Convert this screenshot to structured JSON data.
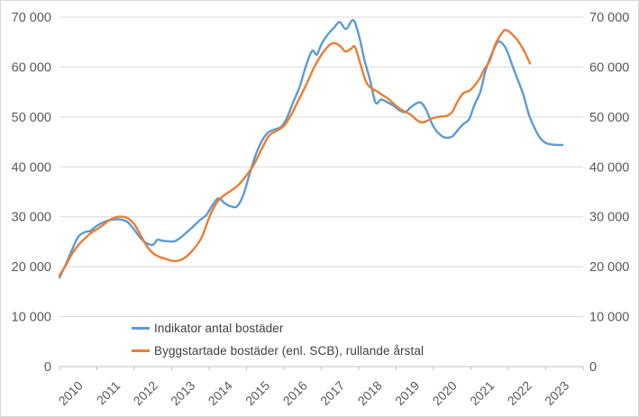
{
  "chart": {
    "legend": [
      {
        "label": "Indikator antal bostäder",
        "color": "#5B9BD5"
      },
      {
        "label": "Byggstartade bostäder (enl. SCB), rullande årstal",
        "color": "#ED7D31"
      }
    ],
    "y_axis": {
      "tick_labels": [
        "0",
        "10 000",
        "20 000",
        "30 000",
        "40 000",
        "50 000",
        "60 000",
        "70 000"
      ],
      "min": 0,
      "max": 70000,
      "step": 10000
    },
    "x_axis": {
      "year_labels": [
        "2010",
        "2011",
        "2012",
        "2013",
        "2014",
        "2015",
        "2016",
        "2017",
        "2018",
        "2019",
        "2020",
        "2021",
        "2022",
        "2023"
      ]
    },
    "colors": {
      "gridline": "#D9D9D9",
      "axis_line": "#BFBFBF",
      "tick_text": "#595959",
      "legend_text": "#404040",
      "background": "#FFFFFF",
      "frame": "#D9D9D9"
    }
  },
  "chart_data": {
    "type": "line",
    "title": "",
    "xlabel": "",
    "ylabel": "",
    "xlim": [
      2010,
      2024
    ],
    "ylim": [
      0,
      70000
    ],
    "grid": "horizontal",
    "legend_position": "inside-bottom-left",
    "series": [
      {
        "name": "Indikator antal bostäder",
        "color": "#5B9BD5",
        "points": [
          [
            2010.0,
            17800
          ],
          [
            2010.17,
            20500
          ],
          [
            2010.33,
            23300
          ],
          [
            2010.5,
            26000
          ],
          [
            2010.67,
            26900
          ],
          [
            2010.83,
            27200
          ],
          [
            2011.0,
            28200
          ],
          [
            2011.17,
            28900
          ],
          [
            2011.33,
            29300
          ],
          [
            2011.5,
            29500
          ],
          [
            2011.67,
            29400
          ],
          [
            2011.83,
            28900
          ],
          [
            2012.0,
            27400
          ],
          [
            2012.17,
            25700
          ],
          [
            2012.33,
            24700
          ],
          [
            2012.5,
            24400
          ],
          [
            2012.62,
            25400
          ],
          [
            2012.75,
            25200
          ],
          [
            2012.92,
            25100
          ],
          [
            2013.08,
            25100
          ],
          [
            2013.25,
            25900
          ],
          [
            2013.42,
            27000
          ],
          [
            2013.58,
            28100
          ],
          [
            2013.75,
            29300
          ],
          [
            2013.92,
            30300
          ],
          [
            2014.08,
            32200
          ],
          [
            2014.25,
            33700
          ],
          [
            2014.42,
            32700
          ],
          [
            2014.58,
            32100
          ],
          [
            2014.75,
            32100
          ],
          [
            2014.92,
            34500
          ],
          [
            2015.08,
            38500
          ],
          [
            2015.25,
            42500
          ],
          [
            2015.42,
            45300
          ],
          [
            2015.58,
            46900
          ],
          [
            2015.75,
            47500
          ],
          [
            2015.92,
            48000
          ],
          [
            2016.08,
            49800
          ],
          [
            2016.25,
            53000
          ],
          [
            2016.42,
            56000
          ],
          [
            2016.58,
            60000
          ],
          [
            2016.75,
            63200
          ],
          [
            2016.88,
            62500
          ],
          [
            2017.0,
            64500
          ],
          [
            2017.17,
            66500
          ],
          [
            2017.33,
            67800
          ],
          [
            2017.49,
            69000
          ],
          [
            2017.66,
            67600
          ],
          [
            2017.85,
            69400
          ],
          [
            2018.0,
            66500
          ],
          [
            2018.15,
            61500
          ],
          [
            2018.3,
            57500
          ],
          [
            2018.45,
            52900
          ],
          [
            2018.6,
            53500
          ],
          [
            2018.75,
            53000
          ],
          [
            2018.9,
            52400
          ],
          [
            2019.1,
            51300
          ],
          [
            2019.25,
            51000
          ],
          [
            2019.45,
            52300
          ],
          [
            2019.65,
            52900
          ],
          [
            2019.8,
            51500
          ],
          [
            2019.95,
            48800
          ],
          [
            2020.1,
            47000
          ],
          [
            2020.3,
            45900
          ],
          [
            2020.5,
            46100
          ],
          [
            2020.65,
            47400
          ],
          [
            2020.8,
            48600
          ],
          [
            2020.95,
            49500
          ],
          [
            2021.1,
            52500
          ],
          [
            2021.25,
            55000
          ],
          [
            2021.4,
            59500
          ],
          [
            2021.55,
            62500
          ],
          [
            2021.7,
            64800
          ],
          [
            2021.8,
            65000
          ],
          [
            2021.95,
            63500
          ],
          [
            2022.1,
            60500
          ],
          [
            2022.25,
            57500
          ],
          [
            2022.4,
            54500
          ],
          [
            2022.55,
            50500
          ],
          [
            2022.7,
            47800
          ],
          [
            2022.85,
            45800
          ],
          [
            2023.0,
            44800
          ],
          [
            2023.15,
            44500
          ],
          [
            2023.3,
            44400
          ],
          [
            2023.45,
            44400
          ]
        ]
      },
      {
        "name": "Byggstartade bostäder (enl. SCB), rullande årstal",
        "color": "#ED7D31",
        "points": [
          [
            2010.0,
            18300
          ],
          [
            2010.17,
            20300
          ],
          [
            2010.33,
            22500
          ],
          [
            2010.5,
            24300
          ],
          [
            2010.67,
            25600
          ],
          [
            2010.83,
            26700
          ],
          [
            2011.0,
            27500
          ],
          [
            2011.17,
            28400
          ],
          [
            2011.33,
            29300
          ],
          [
            2011.5,
            29900
          ],
          [
            2011.67,
            30000
          ],
          [
            2011.83,
            29700
          ],
          [
            2012.0,
            28500
          ],
          [
            2012.17,
            26300
          ],
          [
            2012.33,
            24200
          ],
          [
            2012.5,
            22700
          ],
          [
            2012.67,
            22000
          ],
          [
            2012.83,
            21600
          ],
          [
            2013.0,
            21200
          ],
          [
            2013.17,
            21200
          ],
          [
            2013.33,
            21700
          ],
          [
            2013.5,
            22800
          ],
          [
            2013.67,
            24300
          ],
          [
            2013.83,
            26300
          ],
          [
            2014.0,
            29800
          ],
          [
            2014.2,
            32800
          ],
          [
            2014.4,
            34300
          ],
          [
            2014.6,
            35300
          ],
          [
            2014.8,
            36500
          ],
          [
            2015.0,
            38300
          ],
          [
            2015.2,
            40500
          ],
          [
            2015.4,
            43500
          ],
          [
            2015.6,
            46200
          ],
          [
            2015.8,
            47200
          ],
          [
            2016.0,
            48200
          ],
          [
            2016.2,
            50500
          ],
          [
            2016.4,
            53500
          ],
          [
            2016.6,
            56500
          ],
          [
            2016.8,
            59800
          ],
          [
            2017.0,
            62400
          ],
          [
            2017.2,
            64300
          ],
          [
            2017.35,
            64800
          ],
          [
            2017.5,
            64200
          ],
          [
            2017.65,
            63100
          ],
          [
            2017.8,
            63700
          ],
          [
            2017.9,
            64000
          ],
          [
            2018.05,
            60500
          ],
          [
            2018.2,
            57000
          ],
          [
            2018.35,
            55700
          ],
          [
            2018.5,
            55100
          ],
          [
            2018.65,
            54300
          ],
          [
            2018.8,
            53600
          ],
          [
            2019.0,
            52200
          ],
          [
            2019.2,
            51200
          ],
          [
            2019.4,
            50400
          ],
          [
            2019.55,
            49400
          ],
          [
            2019.7,
            48900
          ],
          [
            2019.85,
            49300
          ],
          [
            2020.0,
            49800
          ],
          [
            2020.2,
            50100
          ],
          [
            2020.35,
            50200
          ],
          [
            2020.5,
            51000
          ],
          [
            2020.65,
            53200
          ],
          [
            2020.8,
            54800
          ],
          [
            2020.95,
            55200
          ],
          [
            2021.1,
            56300
          ],
          [
            2021.25,
            57900
          ],
          [
            2021.35,
            59500
          ],
          [
            2021.5,
            61200
          ],
          [
            2021.65,
            64500
          ],
          [
            2021.8,
            66500
          ],
          [
            2021.9,
            67400
          ],
          [
            2022.0,
            67200
          ],
          [
            2022.15,
            66200
          ],
          [
            2022.3,
            64800
          ],
          [
            2022.45,
            62800
          ],
          [
            2022.58,
            60700
          ]
        ]
      }
    ]
  }
}
